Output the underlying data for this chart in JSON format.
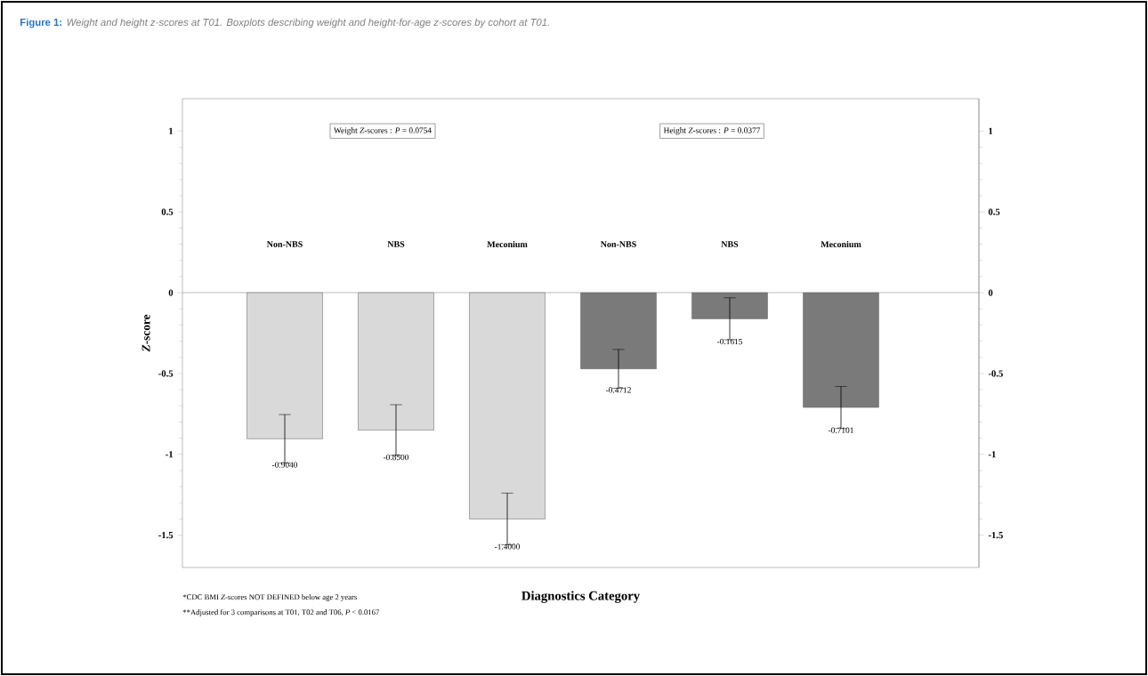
{
  "chart_data": {
    "type": "bar",
    "title": "**Figure 1:**",
    "subtitle": "Weight and height z-scores at T01. Boxplots describing weight and height-for-age z-scores by cohort at T01.",
    "categories": [
      "Non-NBS",
      "NBS",
      "Meconium",
      "Non-NBS",
      "NBS",
      "Meconium"
    ],
    "series": [
      {
        "color": "#d9d9d9",
        "values": [
          -0.904,
          -0.85,
          -1.4,
          null,
          null,
          null
        ],
        "errors": [
          0.15,
          0.157,
          0.16,
          null,
          null,
          null
        ],
        "value_labels": [
          "-0.9040",
          "-0.8500",
          "-1.4000",
          null,
          null,
          null
        ]
      },
      {
        "color": "#7a7a7a",
        "values": [
          null,
          null,
          null,
          -0.4712,
          -0.1615,
          -0.7101
        ],
        "errors": [
          null,
          null,
          null,
          0.12,
          0.13,
          0.13
        ],
        "value_labels": [
          null,
          null,
          null,
          "-0.4712",
          "-0.1615",
          "-0.7101"
        ]
      }
    ],
    "xlabel": "Diagnostics Category",
    "ylabel": "*Z*-score",
    "ylim": [
      -1.7,
      1.2
    ],
    "yticks": [
      -1.5,
      -1,
      -0.5,
      0,
      0.5,
      1
    ],
    "y2lim": [
      -1.7,
      1.2
    ],
    "y2ticks": [
      -1.5,
      -1,
      -0.5,
      0,
      0.5,
      1
    ],
    "ref_lines": [
      {
        "axis": "y",
        "value": 0,
        "color": "#bbbbbb"
      }
    ],
    "annotations": [
      "Weight *Z*-scores : *P* = 0.0754",
      "Height *Z*-scores : *P* = 0.0377",
      "*CDC BMI *Z*-scores NOT DEFINED below age 2 years",
      "**Adjusted for 3 comparisons at T01, T02 and T06, *P* < 0.0167"
    ]
  }
}
